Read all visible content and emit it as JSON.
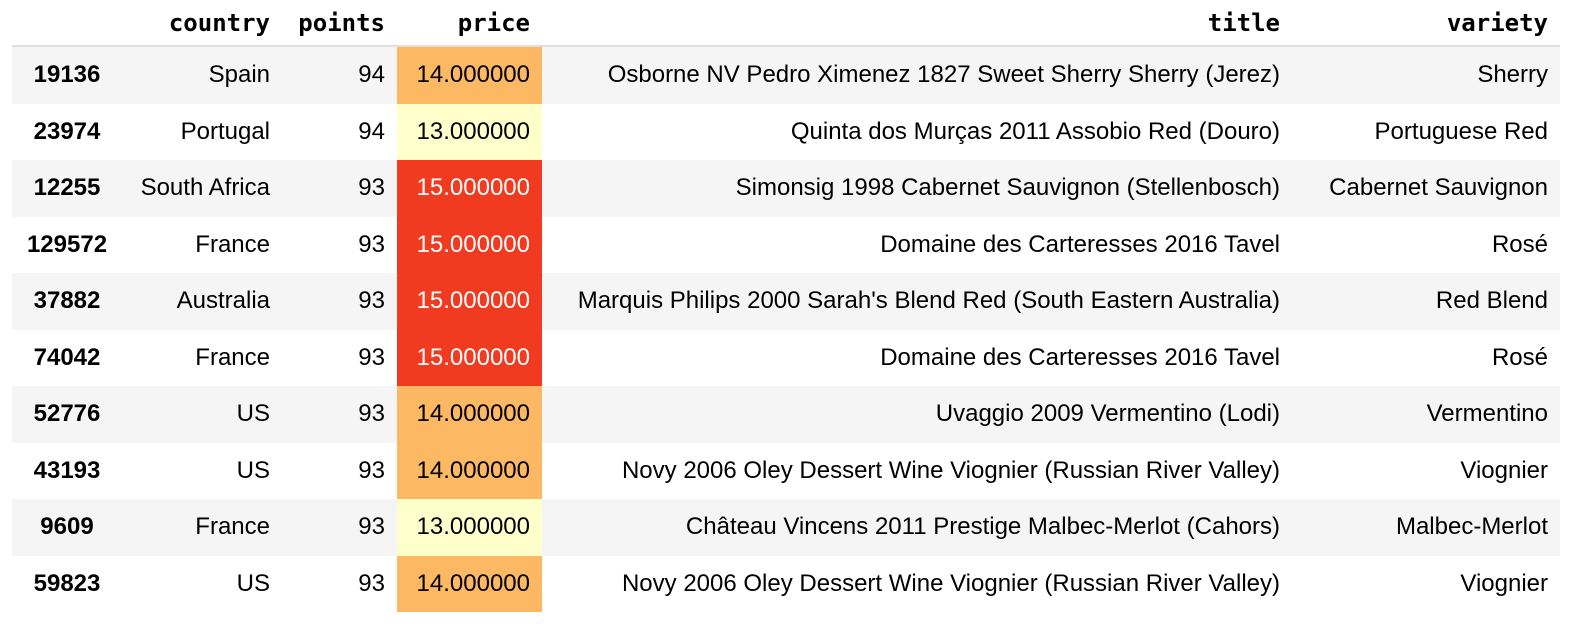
{
  "table": {
    "columns": [
      "",
      "country",
      "points",
      "price",
      "title",
      "variety"
    ],
    "rows": [
      {
        "index": "19136",
        "country": "Spain",
        "points": "94",
        "price": "14.000000",
        "title": "Osborne NV Pedro Ximenez 1827 Sweet Sherry Sherry (Jerez)",
        "variety": "Sherry",
        "price_bg": "#fdb863",
        "price_fg": "#000000"
      },
      {
        "index": "23974",
        "country": "Portugal",
        "points": "94",
        "price": "13.000000",
        "title": "Quinta dos Murças 2011 Assobio Red (Douro)",
        "variety": "Portuguese Red",
        "price_bg": "#ffffcc",
        "price_fg": "#000000"
      },
      {
        "index": "12255",
        "country": "South Africa",
        "points": "93",
        "price": "15.000000",
        "title": "Simonsig 1998 Cabernet Sauvignon (Stellenbosch)",
        "variety": "Cabernet Sauvignon",
        "price_bg": "#f03b20",
        "price_fg": "#ffffff"
      },
      {
        "index": "129572",
        "country": "France",
        "points": "93",
        "price": "15.000000",
        "title": "Domaine des Carteresses 2016 Tavel",
        "variety": "Rosé",
        "price_bg": "#f03b20",
        "price_fg": "#ffffff"
      },
      {
        "index": "37882",
        "country": "Australia",
        "points": "93",
        "price": "15.000000",
        "title": "Marquis Philips 2000 Sarah's Blend Red (South Eastern Australia)",
        "variety": "Red Blend",
        "price_bg": "#f03b20",
        "price_fg": "#ffffff"
      },
      {
        "index": "74042",
        "country": "France",
        "points": "93",
        "price": "15.000000",
        "title": "Domaine des Carteresses 2016 Tavel",
        "variety": "Rosé",
        "price_bg": "#f03b20",
        "price_fg": "#ffffff"
      },
      {
        "index": "52776",
        "country": "US",
        "points": "93",
        "price": "14.000000",
        "title": "Uvaggio 2009 Vermentino (Lodi)",
        "variety": "Vermentino",
        "price_bg": "#fdb863",
        "price_fg": "#000000"
      },
      {
        "index": "43193",
        "country": "US",
        "points": "93",
        "price": "14.000000",
        "title": "Novy 2006 Oley Dessert Wine Viognier (Russian River Valley)",
        "variety": "Viognier",
        "price_bg": "#fdb863",
        "price_fg": "#000000"
      },
      {
        "index": "9609",
        "country": "France",
        "points": "93",
        "price": "13.000000",
        "title": "Château Vincens 2011 Prestige Malbec-Merlot (Cahors)",
        "variety": "Malbec-Merlot",
        "price_bg": "#ffffcc",
        "price_fg": "#000000"
      },
      {
        "index": "59823",
        "country": "US",
        "points": "93",
        "price": "14.000000",
        "title": "Novy 2006 Oley Dessert Wine Viognier (Russian River Valley)",
        "variety": "Viognier",
        "price_bg": "#fdb863",
        "price_fg": "#000000"
      }
    ]
  }
}
